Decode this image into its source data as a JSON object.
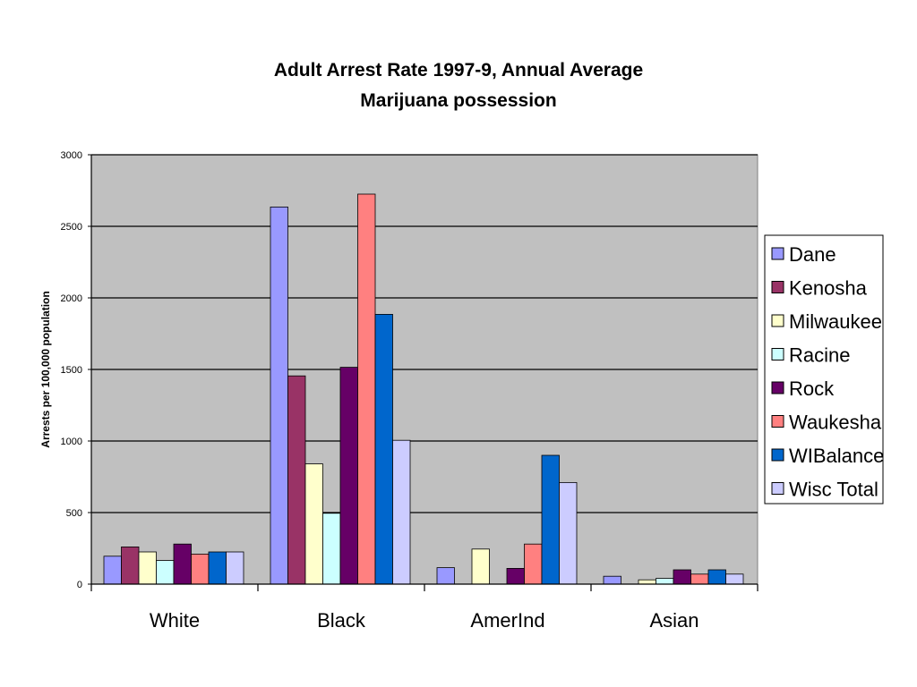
{
  "chart_data": {
    "type": "bar",
    "title": "Adult Arrest Rate 1997-9, Annual Average",
    "subtitle": "Marijuana possession",
    "xlabel": "",
    "ylabel": "Arrests per 100,000 population",
    "ylim": [
      0,
      3000
    ],
    "yticks": [
      0,
      500,
      1000,
      1500,
      2000,
      2500,
      3000
    ],
    "grid": true,
    "legend_position": "right",
    "plot_background": "#c0c0c0",
    "categories": [
      "White",
      "Black",
      "AmerInd",
      "Asian"
    ],
    "series": [
      {
        "name": "Dane",
        "color": "#9999ff",
        "values": [
          195,
          2635,
          115,
          55
        ]
      },
      {
        "name": "Kenosha",
        "color": "#993366",
        "values": [
          260,
          1455,
          0,
          0
        ]
      },
      {
        "name": "Milwaukee",
        "color": "#ffffcc",
        "values": [
          225,
          840,
          245,
          30
        ]
      },
      {
        "name": "Racine",
        "color": "#ccffff",
        "values": [
          165,
          495,
          0,
          40
        ]
      },
      {
        "name": "Rock",
        "color": "#660066",
        "values": [
          280,
          1515,
          110,
          100
        ]
      },
      {
        "name": "Waukesha",
        "color": "#ff8080",
        "values": [
          210,
          2725,
          280,
          70
        ]
      },
      {
        "name": "WIBalance",
        "color": "#0066cc",
        "values": [
          225,
          1885,
          900,
          100
        ]
      },
      {
        "name": "Wisc Total",
        "color": "#ccccff",
        "values": [
          225,
          1005,
          710,
          70
        ]
      }
    ]
  }
}
